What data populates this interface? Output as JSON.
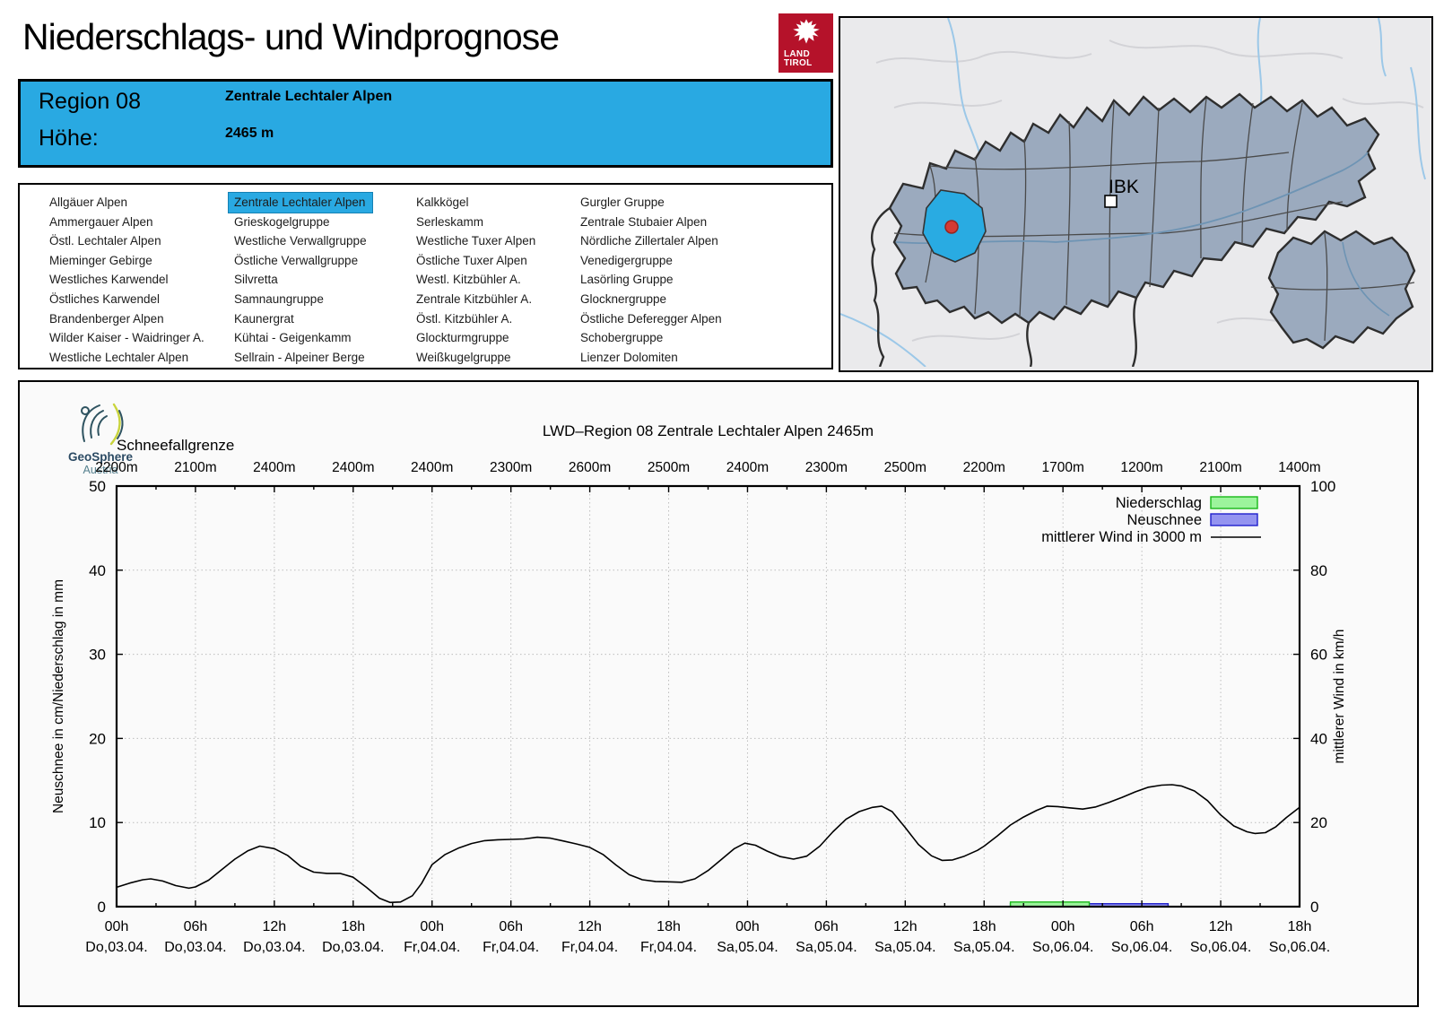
{
  "header": {
    "title": "Niederschlags- und Windprognose",
    "logo": {
      "line1": "LAND",
      "line2": "TIROL"
    }
  },
  "geosphere": {
    "line1": "GeoSphere",
    "line2": "Austria"
  },
  "info_box": {
    "region_label": "Region 08",
    "region_name": "Zentrale Lechtaler Alpen",
    "height_label": "Höhe:",
    "height_value": "2465 m"
  },
  "region_list": {
    "selected": "Zentrale Lechtaler Alpen",
    "columns": [
      [
        "Allgäuer Alpen",
        "Ammergauer Alpen",
        "Östl. Lechtaler Alpen",
        "Mieminger Gebirge",
        "Westliches Karwendel",
        "Östliches Karwendel",
        "Brandenberger Alpen",
        "Wilder Kaiser - Waidringer A.",
        "Westliche Lechtaler Alpen"
      ],
      [
        "Zentrale Lechtaler Alpen",
        "Grieskogelgruppe",
        "Westliche Verwallgruppe",
        "Östliche Verwallgruppe",
        "Silvretta",
        "Samnaungruppe",
        "Kaunergrat",
        "Kühtai - Geigenkamm",
        "Sellrain - Alpeiner Berge"
      ],
      [
        "Kalkkögel",
        "Serleskamm",
        "Westliche Tuxer Alpen",
        "Östliche Tuxer Alpen",
        "Westl. Kitzbühler A.",
        "Zentrale Kitzbühler A.",
        "Östl. Kitzbühler A.",
        "Glockturmgruppe",
        "Weißkugelgruppe"
      ],
      [
        "Gurgler Gruppe",
        "Zentrale Stubaier Alpen",
        "Nördliche Zillertaler Alpen",
        "Venedigergruppe",
        "Lasörling Gruppe",
        "Glocknergruppe",
        "Östliche Deferegger Alpen",
        "Schobergruppe",
        "Lienzer Dolomiten"
      ]
    ]
  },
  "map": {
    "marker_label": "IBK",
    "highlight_color": "#29ABE2",
    "marker_color": "#D43A34"
  },
  "chart_data": {
    "type": "line",
    "title": "LWD–Region 08 Zentrale Lechtaler Alpen 2465m",
    "x2_axis": {
      "label": "Schneefallgrenze",
      "tick_labels": [
        "2200m",
        "2100m",
        "2400m",
        "2400m",
        "2400m",
        "2300m",
        "2600m",
        "2500m",
        "2400m",
        "2300m",
        "2500m",
        "2200m",
        "1700m",
        "1200m",
        "2100m",
        "1400m"
      ]
    },
    "x_axis": {
      "hours_span": 90,
      "tick_step_h": 6,
      "minor_step_h": 3,
      "time_labels": [
        "00h",
        "06h",
        "12h",
        "18h",
        "00h",
        "06h",
        "12h",
        "18h",
        "00h",
        "06h",
        "12h",
        "18h",
        "00h",
        "06h",
        "12h",
        "18h"
      ],
      "date_labels": [
        "Do,03.04.",
        "Do,03.04.",
        "Do,03.04.",
        "Do,03.04.",
        "Fr,04.04.",
        "Fr,04.04.",
        "Fr,04.04.",
        "Fr,04.04.",
        "Sa,05.04.",
        "Sa,05.04.",
        "Sa,05.04.",
        "Sa,05.04.",
        "So,06.04.",
        "So,06.04.",
        "So,06.04.",
        "So,06.04."
      ]
    },
    "y_left": {
      "label": "Neuschnee in cm/Niederschlag in mm",
      "min": 0,
      "max": 50,
      "tick_step": 10,
      "grid_at": [
        10,
        20,
        30,
        40
      ]
    },
    "y_right": {
      "label": "mittlerer Wind in km/h",
      "min": 0,
      "max": 100,
      "tick_step": 20
    },
    "legend": [
      {
        "label": "Niederschlag",
        "type": "box",
        "fill": "#9CF49C",
        "stroke": "#18B818"
      },
      {
        "label": "Neuschnee",
        "type": "box",
        "fill": "#9494F0",
        "stroke": "#2020CC"
      },
      {
        "label": "mittlerer Wind in 3000 m",
        "type": "line",
        "stroke": "#000000"
      }
    ],
    "series": [
      {
        "name": "Niederschlag",
        "unit": "mm",
        "axis": "left",
        "type": "bar",
        "from_h": 68,
        "to_h": 74,
        "value": 0.55
      },
      {
        "name": "Neuschnee",
        "unit": "cm",
        "axis": "left",
        "type": "bar",
        "from_h": 68,
        "to_h": 80,
        "value": 0.35
      },
      {
        "name": "mittlerer Wind in 3000 m",
        "unit": "km/h",
        "axis": "right",
        "type": "line",
        "points_h_kmh": [
          [
            0,
            4.6
          ],
          [
            1,
            5.6
          ],
          [
            2,
            6.4
          ],
          [
            2.6,
            6.6
          ],
          [
            3.5,
            6.1
          ],
          [
            4.5,
            5.0
          ],
          [
            5.5,
            4.4
          ],
          [
            6,
            4.7
          ],
          [
            7,
            6.3
          ],
          [
            8,
            8.8
          ],
          [
            9,
            11.3
          ],
          [
            10,
            13.3
          ],
          [
            10.9,
            14.4
          ],
          [
            12,
            13.8
          ],
          [
            13,
            12.2
          ],
          [
            14,
            9.6
          ],
          [
            15,
            8.2
          ],
          [
            16,
            7.9
          ],
          [
            17,
            7.9
          ],
          [
            18,
            7.0
          ],
          [
            19,
            4.6
          ],
          [
            20,
            2.0
          ],
          [
            20.8,
            1.0
          ],
          [
            21.6,
            1.1
          ],
          [
            22.5,
            2.6
          ],
          [
            23.2,
            5.5
          ],
          [
            24,
            10.0
          ],
          [
            25,
            12.4
          ],
          [
            26,
            13.9
          ],
          [
            27,
            15.0
          ],
          [
            28,
            15.7
          ],
          [
            29,
            15.9
          ],
          [
            30,
            16.0
          ],
          [
            31,
            16.1
          ],
          [
            32,
            16.5
          ],
          [
            33,
            16.3
          ],
          [
            34,
            15.6
          ],
          [
            35,
            14.9
          ],
          [
            36,
            14.1
          ],
          [
            37,
            12.4
          ],
          [
            38,
            9.9
          ],
          [
            39,
            7.6
          ],
          [
            40,
            6.4
          ],
          [
            41,
            6.0
          ],
          [
            42,
            5.9
          ],
          [
            43,
            5.8
          ],
          [
            44,
            6.6
          ],
          [
            45,
            8.6
          ],
          [
            46,
            11.2
          ],
          [
            47,
            13.8
          ],
          [
            47.8,
            15.1
          ],
          [
            48.6,
            14.6
          ],
          [
            49.5,
            13.2
          ],
          [
            50.5,
            11.9
          ],
          [
            51.5,
            11.3
          ],
          [
            52.5,
            12.0
          ],
          [
            53.5,
            14.4
          ],
          [
            54.5,
            17.8
          ],
          [
            55.5,
            20.8
          ],
          [
            56.5,
            22.6
          ],
          [
            57.5,
            23.6
          ],
          [
            58.2,
            23.9
          ],
          [
            59,
            22.6
          ],
          [
            60,
            18.8
          ],
          [
            61,
            14.8
          ],
          [
            62,
            12.1
          ],
          [
            62.8,
            11.0
          ],
          [
            63.6,
            11.1
          ],
          [
            64.5,
            12.0
          ],
          [
            65.5,
            13.4
          ],
          [
            66,
            14.4
          ],
          [
            67,
            16.8
          ],
          [
            68,
            19.4
          ],
          [
            69,
            21.3
          ],
          [
            70,
            22.9
          ],
          [
            70.8,
            23.9
          ],
          [
            71.6,
            23.8
          ],
          [
            72.5,
            23.5
          ],
          [
            73.5,
            23.2
          ],
          [
            74.5,
            23.7
          ],
          [
            75.5,
            24.8
          ],
          [
            76.5,
            26.0
          ],
          [
            77.5,
            27.3
          ],
          [
            78.5,
            28.4
          ],
          [
            79.5,
            28.9
          ],
          [
            80.3,
            29.0
          ],
          [
            81,
            28.7
          ],
          [
            82,
            27.5
          ],
          [
            83,
            25.2
          ],
          [
            84,
            21.8
          ],
          [
            85,
            19.2
          ],
          [
            86,
            17.8
          ],
          [
            86.6,
            17.4
          ],
          [
            87.4,
            17.6
          ],
          [
            88.2,
            19.0
          ],
          [
            89,
            21.2
          ],
          [
            90,
            23.6
          ]
        ]
      }
    ]
  }
}
